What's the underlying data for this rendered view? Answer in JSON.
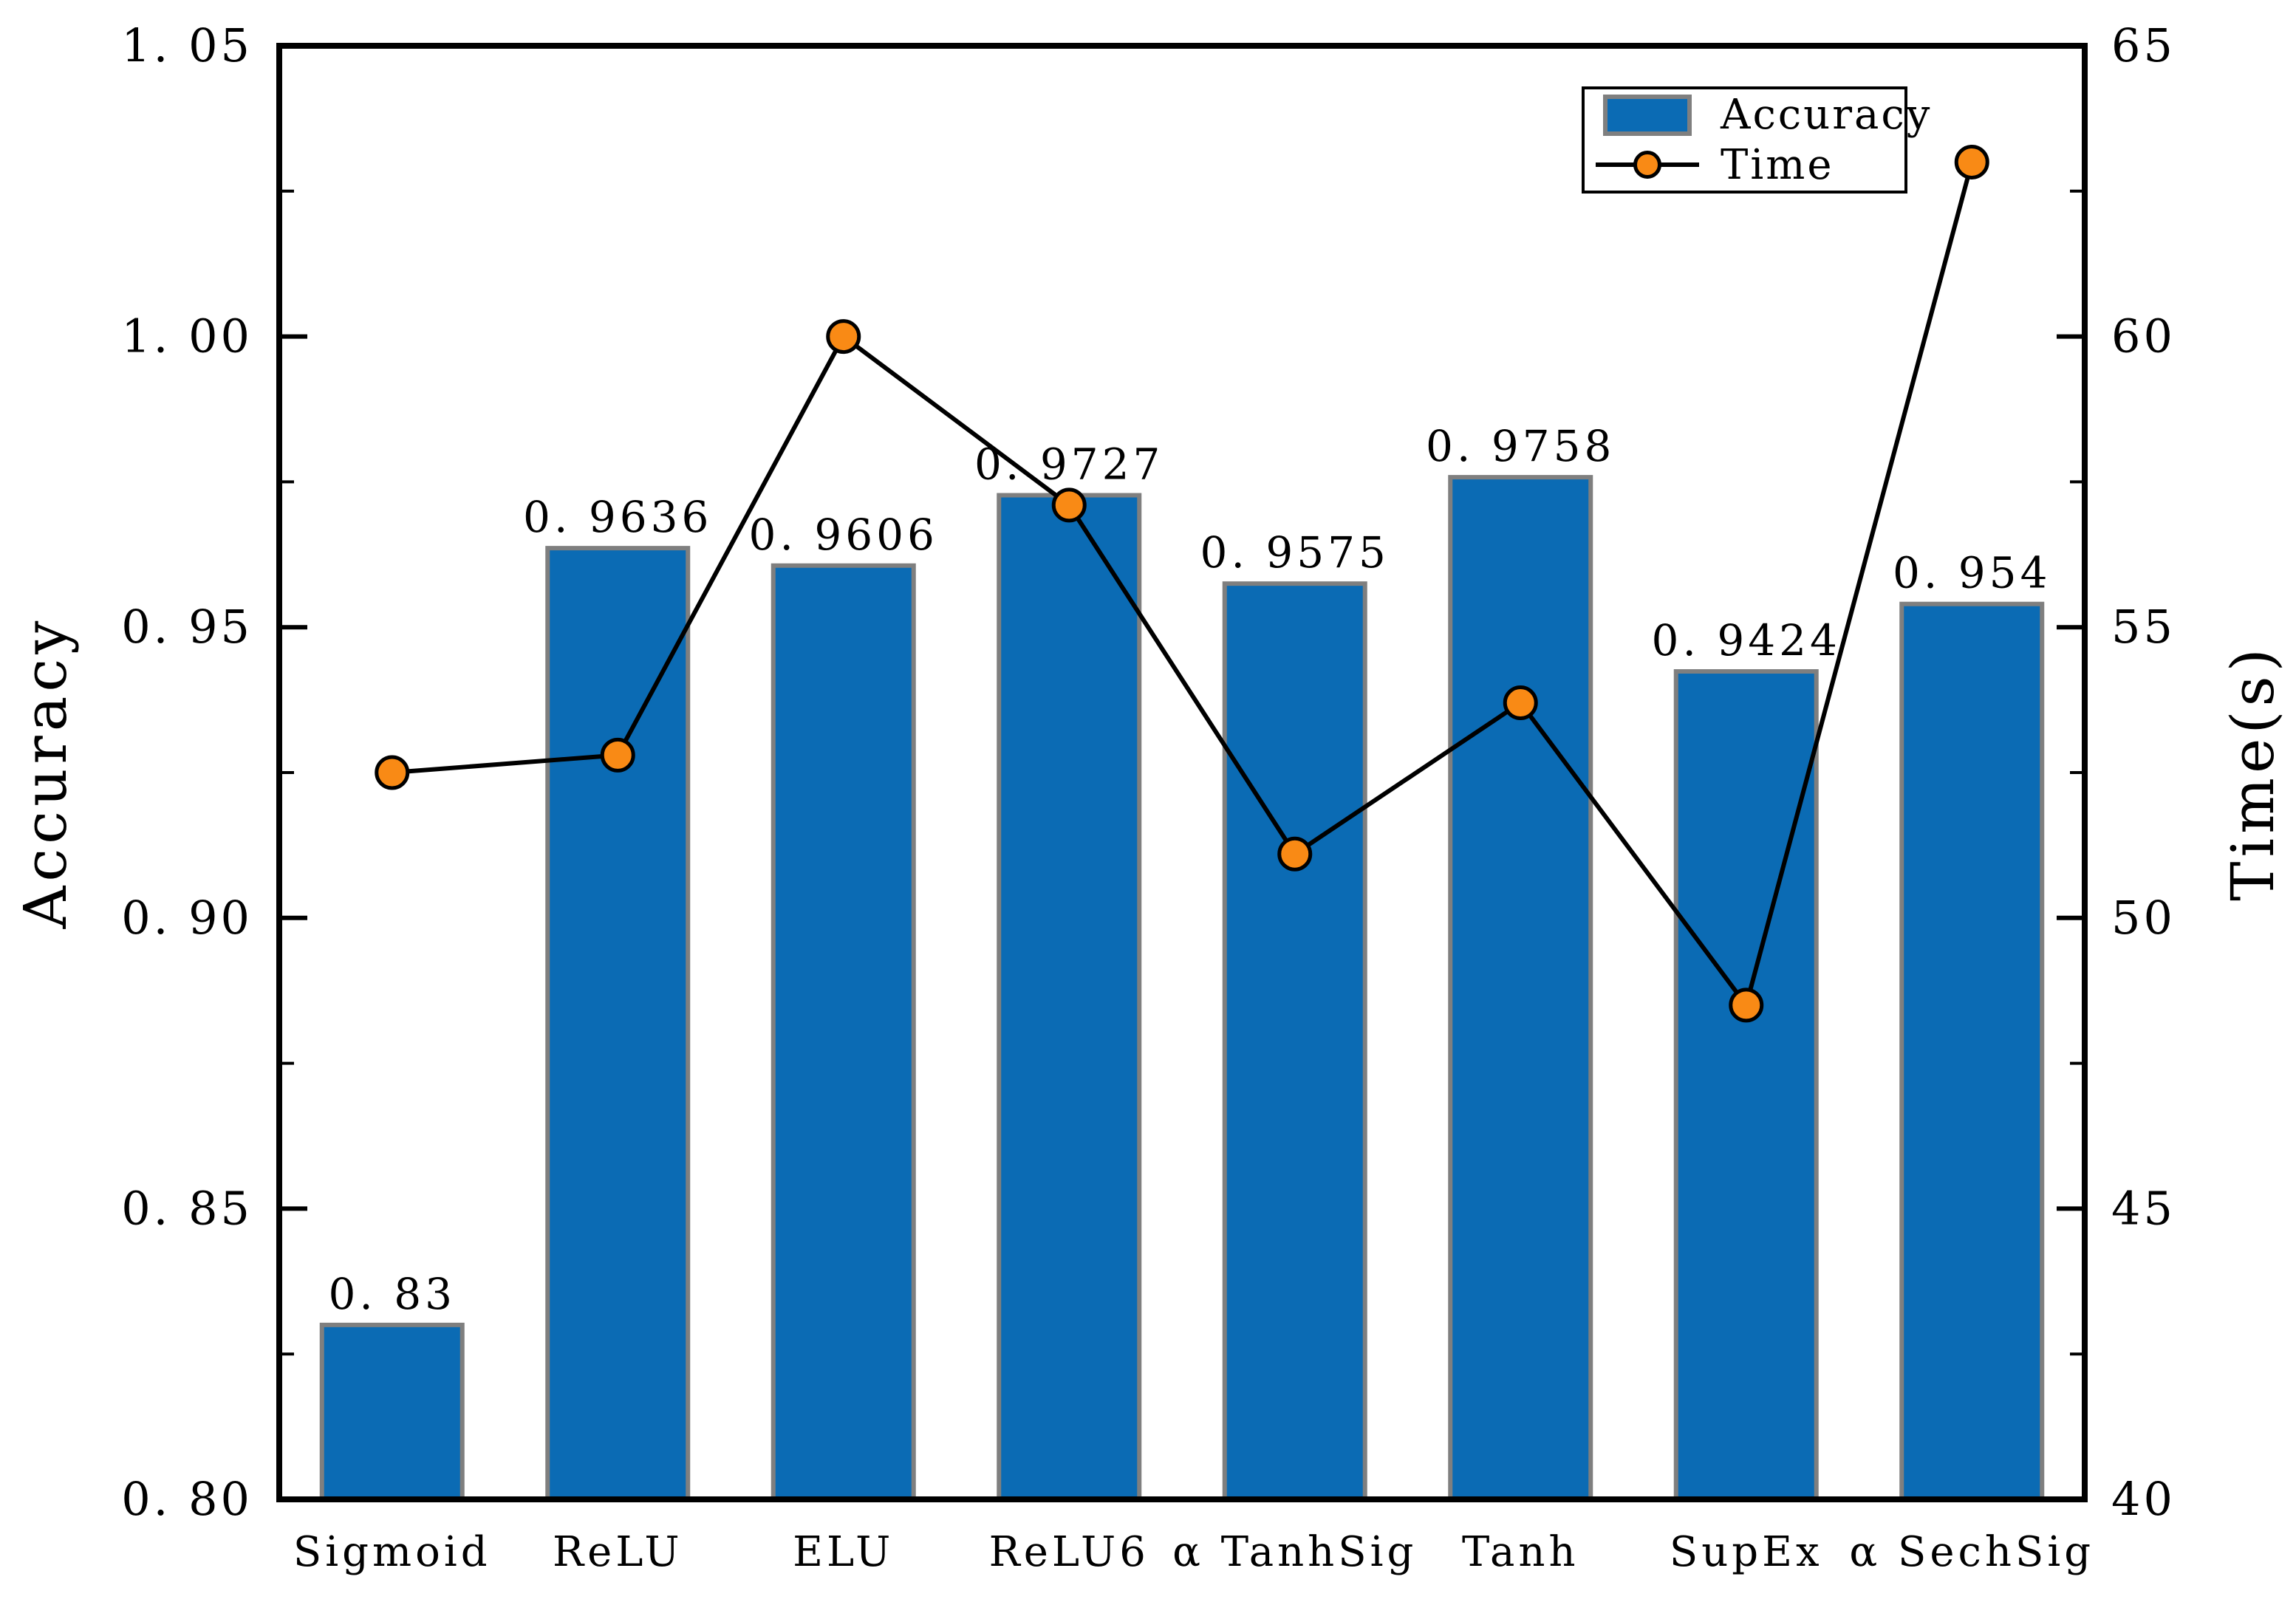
{
  "chart_data": {
    "type": "bar",
    "subtype": "bar-with-line-overlay",
    "categories": [
      "Sigmoid",
      "ReLU",
      "ELU",
      "ReLU6",
      "α TanhSig",
      "Tanh",
      "SupEx",
      "α SechSig"
    ],
    "series": [
      {
        "name": "Accuracy",
        "type": "bar",
        "axis": "left",
        "values": [
          0.83,
          0.9636,
          0.9606,
          0.9727,
          0.9575,
          0.9758,
          0.9424,
          0.954
        ],
        "data_labels": [
          "0. 83",
          "0. 9636",
          "0. 9606",
          "0. 9727",
          "0. 9575",
          "0. 9758",
          "0. 9424",
          "0. 954"
        ]
      },
      {
        "name": "Time",
        "type": "line",
        "axis": "right",
        "values": [
          52.5,
          52.8,
          60.0,
          57.1,
          51.1,
          53.7,
          48.5,
          63.0
        ]
      }
    ],
    "left_axis": {
      "label": "Accuracy",
      "min": 0.8,
      "max": 1.05,
      "tick_values": [
        1.05,
        1.0,
        0.95,
        0.9,
        0.85,
        0.8
      ],
      "tick_labels": [
        "1. 05",
        "1. 00",
        "0. 95",
        "0. 90",
        "0. 85",
        "0. 80"
      ],
      "minor_step": 0.025
    },
    "right_axis": {
      "label": "Time(s)",
      "min": 40,
      "max": 65,
      "tick_values": [
        65,
        60,
        55,
        50,
        45,
        40
      ],
      "tick_labels": [
        "65",
        "60",
        "55",
        "50",
        "45",
        "40"
      ],
      "minor_step": 2.5
    },
    "legend": {
      "position": "top-right",
      "entries": [
        "Accuracy",
        "Time"
      ]
    },
    "grid": "off",
    "colors": {
      "bar_fill": "#0b6bb4",
      "bar_edge": "#7f7f7f",
      "line": "#000000",
      "marker_fill": "#f98a15",
      "marker_edge": "#000000",
      "axis": "#000000",
      "text": "#000000",
      "background": "#ffffff"
    }
  }
}
